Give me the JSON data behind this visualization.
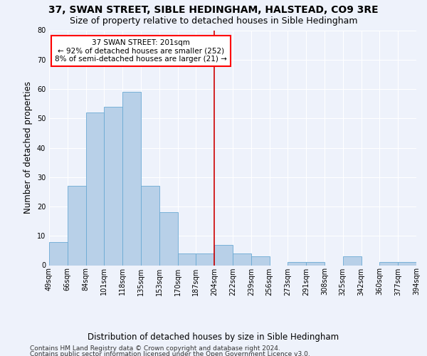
{
  "title": "37, SWAN STREET, SIBLE HEDINGHAM, HALSTEAD, CO9 3RE",
  "subtitle": "Size of property relative to detached houses in Sible Hedingham",
  "xlabel": "Distribution of detached houses by size in Sible Hedingham",
  "ylabel": "Number of detached properties",
  "categories": [
    "49sqm",
    "66sqm",
    "84sqm",
    "101sqm",
    "118sqm",
    "135sqm",
    "153sqm",
    "170sqm",
    "187sqm",
    "204sqm",
    "222sqm",
    "239sqm",
    "256sqm",
    "273sqm",
    "291sqm",
    "308sqm",
    "325sqm",
    "342sqm",
    "360sqm",
    "377sqm",
    "394sqm"
  ],
  "bar_values": [
    8,
    27,
    52,
    54,
    59,
    27,
    18,
    4,
    4,
    7,
    4,
    3,
    0,
    1,
    1,
    0,
    3,
    0,
    1,
    1
  ],
  "annotation_text1": "37 SWAN STREET: 201sqm",
  "annotation_text2": "← 92% of detached houses are smaller (252)",
  "annotation_text3": "8% of semi-detached houses are larger (21) →",
  "vline_x": 8.5,
  "bar_color": "#b8d0e8",
  "bar_edge_color": "#6aaad4",
  "background_color": "#eef2fb",
  "vline_color": "#cc0000",
  "ylim": [
    0,
    80
  ],
  "yticks": [
    0,
    10,
    20,
    30,
    40,
    50,
    60,
    70,
    80
  ],
  "title_fontsize": 10,
  "subtitle_fontsize": 9,
  "ylabel_fontsize": 8.5,
  "xlabel_fontsize": 8.5,
  "tick_fontsize": 7,
  "annot_fontsize": 7.5,
  "footer_fontsize": 6.5,
  "footer1": "Contains HM Land Registry data © Crown copyright and database right 2024.",
  "footer2": "Contains public sector information licensed under the Open Government Licence v3.0."
}
